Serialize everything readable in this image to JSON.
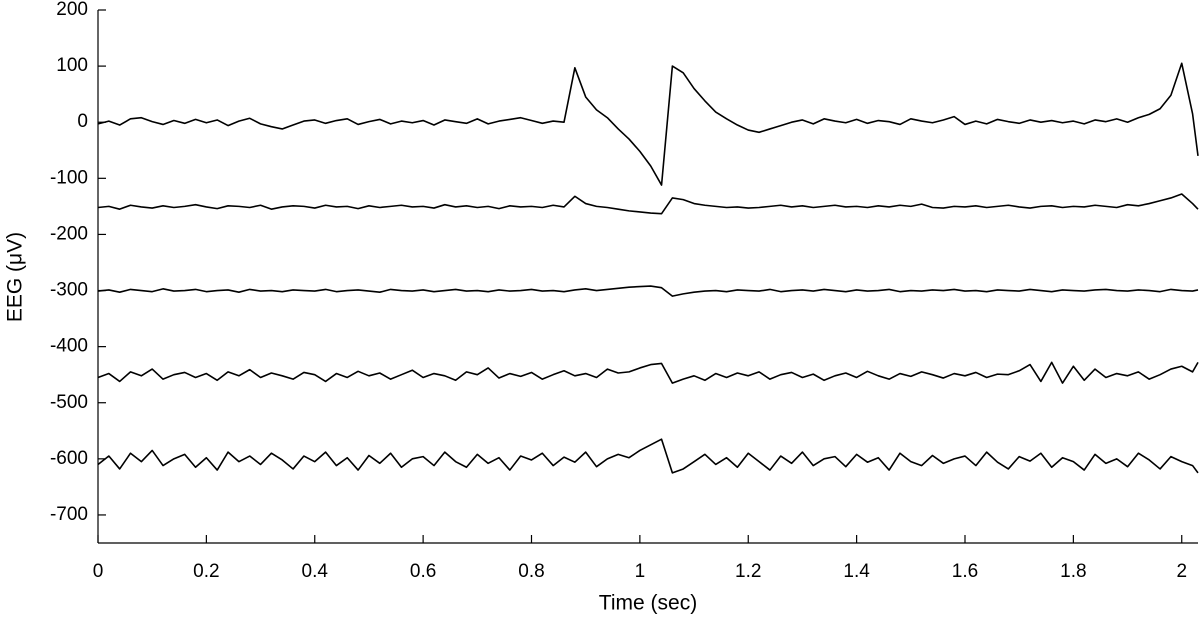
{
  "chart_data": {
    "type": "line",
    "xlabel": "Time (sec)",
    "ylabel": "EEG (μV)",
    "xlim": [
      0,
      2.03
    ],
    "ylim": [
      -750,
      200
    ],
    "xticks": [
      0,
      0.2,
      0.4,
      0.6,
      0.8,
      1,
      1.2,
      1.4,
      1.6,
      1.8,
      2
    ],
    "yticks": [
      200,
      100,
      0,
      -100,
      -200,
      -300,
      -400,
      -500,
      -600,
      -700
    ],
    "grid": false,
    "x": [
      0,
      0.02,
      0.04,
      0.06,
      0.08,
      0.1,
      0.12,
      0.14,
      0.16,
      0.18,
      0.2,
      0.22,
      0.24,
      0.26,
      0.28,
      0.3,
      0.32,
      0.34,
      0.36,
      0.38,
      0.4,
      0.42,
      0.44,
      0.46,
      0.48,
      0.5,
      0.52,
      0.54,
      0.56,
      0.58,
      0.6,
      0.62,
      0.64,
      0.66,
      0.68,
      0.7,
      0.72,
      0.74,
      0.76,
      0.78,
      0.8,
      0.82,
      0.84,
      0.86,
      0.88,
      0.9,
      0.92,
      0.94,
      0.96,
      0.98,
      1,
      1.02,
      1.04,
      1.06,
      1.08,
      1.1,
      1.12,
      1.14,
      1.16,
      1.18,
      1.2,
      1.22,
      1.24,
      1.26,
      1.28,
      1.3,
      1.32,
      1.34,
      1.36,
      1.38,
      1.4,
      1.42,
      1.44,
      1.46,
      1.48,
      1.5,
      1.52,
      1.54,
      1.56,
      1.58,
      1.6,
      1.62,
      1.64,
      1.66,
      1.68,
      1.7,
      1.72,
      1.74,
      1.76,
      1.78,
      1.8,
      1.82,
      1.84,
      1.86,
      1.88,
      1.9,
      1.92,
      1.94,
      1.96,
      1.98,
      2,
      2.02,
      2.03
    ],
    "series": [
      {
        "color": "#000000",
        "values": [
          -3,
          2,
          -5,
          6,
          8,
          1,
          -4,
          3,
          -2,
          5,
          -1,
          4,
          -6,
          2,
          7,
          -3,
          -8,
          -12,
          -5,
          2,
          4,
          -2,
          3,
          6,
          -4,
          1,
          5,
          -3,
          2,
          -1,
          3,
          -5,
          4,
          1,
          -2,
          6,
          -3,
          2,
          5,
          8,
          3,
          -2,
          2,
          0,
          97,
          45,
          22,
          8,
          -12,
          -30,
          -52,
          -78,
          -112,
          100,
          88,
          60,
          38,
          18,
          6,
          -5,
          -14,
          -18,
          -12,
          -6,
          0,
          4,
          -3,
          6,
          2,
          -1,
          5,
          -2,
          3,
          1,
          -4,
          6,
          2,
          -1,
          4,
          10,
          -4,
          2,
          -3,
          5,
          1,
          -2,
          4,
          0,
          3,
          -1,
          2,
          -3,
          4,
          1,
          6,
          0,
          8,
          14,
          24,
          48,
          105,
          15,
          -60
        ]
      },
      {
        "color": "#000000",
        "values": [
          -152,
          -150,
          -155,
          -148,
          -151,
          -153,
          -149,
          -152,
          -150,
          -147,
          -151,
          -154,
          -149,
          -150,
          -152,
          -148,
          -155,
          -151,
          -149,
          -150,
          -153,
          -148,
          -151,
          -150,
          -154,
          -149,
          -152,
          -150,
          -148,
          -151,
          -150,
          -153,
          -147,
          -151,
          -149,
          -152,
          -150,
          -154,
          -149,
          -151,
          -150,
          -152,
          -148,
          -151,
          -132,
          -145,
          -150,
          -152,
          -155,
          -158,
          -160,
          -162,
          -163,
          -135,
          -138,
          -145,
          -148,
          -150,
          -152,
          -151,
          -153,
          -152,
          -150,
          -148,
          -151,
          -149,
          -152,
          -150,
          -148,
          -151,
          -150,
          -152,
          -149,
          -151,
          -148,
          -150,
          -146,
          -152,
          -153,
          -150,
          -151,
          -149,
          -152,
          -150,
          -148,
          -151,
          -153,
          -150,
          -149,
          -152,
          -150,
          -151,
          -148,
          -150,
          -152,
          -147,
          -149,
          -145,
          -140,
          -135,
          -128,
          -145,
          -155
        ]
      },
      {
        "color": "#000000",
        "values": [
          -301,
          -299,
          -303,
          -298,
          -300,
          -302,
          -297,
          -301,
          -300,
          -298,
          -302,
          -300,
          -299,
          -303,
          -298,
          -301,
          -300,
          -302,
          -299,
          -300,
          -301,
          -298,
          -302,
          -300,
          -299,
          -301,
          -303,
          -298,
          -300,
          -301,
          -299,
          -302,
          -300,
          -298,
          -301,
          -300,
          -302,
          -299,
          -301,
          -300,
          -298,
          -301,
          -300,
          -302,
          -299,
          -297,
          -300,
          -298,
          -296,
          -294,
          -293,
          -292,
          -295,
          -310,
          -306,
          -303,
          -301,
          -300,
          -302,
          -299,
          -300,
          -301,
          -298,
          -302,
          -300,
          -299,
          -301,
          -298,
          -300,
          -302,
          -299,
          -301,
          -300,
          -298,
          -302,
          -300,
          -301,
          -299,
          -300,
          -298,
          -301,
          -300,
          -302,
          -299,
          -300,
          -301,
          -298,
          -300,
          -302,
          -299,
          -300,
          -301,
          -299,
          -298,
          -300,
          -301,
          -299,
          -300,
          -302,
          -298,
          -300,
          -301,
          -299
        ]
      },
      {
        "color": "#000000",
        "values": [
          -455,
          -448,
          -462,
          -445,
          -452,
          -440,
          -458,
          -450,
          -446,
          -455,
          -448,
          -460,
          -445,
          -452,
          -441,
          -455,
          -447,
          -452,
          -458,
          -446,
          -450,
          -462,
          -448,
          -455,
          -444,
          -452,
          -447,
          -458,
          -450,
          -442,
          -455,
          -448,
          -452,
          -460,
          -445,
          -450,
          -438,
          -456,
          -448,
          -453,
          -446,
          -458,
          -450,
          -443,
          -452,
          -448,
          -455,
          -440,
          -447,
          -445,
          -438,
          -432,
          -430,
          -465,
          -458,
          -452,
          -460,
          -448,
          -455,
          -447,
          -452,
          -445,
          -458,
          -450,
          -446,
          -455,
          -449,
          -460,
          -452,
          -447,
          -455,
          -444,
          -452,
          -458,
          -448,
          -453,
          -445,
          -450,
          -456,
          -448,
          -452,
          -446,
          -455,
          -449,
          -450,
          -443,
          -432,
          -462,
          -428,
          -465,
          -435,
          -460,
          -440,
          -455,
          -448,
          -452,
          -445,
          -458,
          -450,
          -440,
          -435,
          -445,
          -428
        ]
      },
      {
        "color": "#000000",
        "values": [
          -610,
          -595,
          -618,
          -590,
          -605,
          -585,
          -612,
          -600,
          -592,
          -615,
          -598,
          -620,
          -588,
          -605,
          -595,
          -610,
          -590,
          -602,
          -618,
          -595,
          -605,
          -588,
          -612,
          -598,
          -620,
          -594,
          -608,
          -590,
          -615,
          -600,
          -596,
          -612,
          -588,
          -605,
          -615,
          -592,
          -608,
          -598,
          -620,
          -595,
          -602,
          -590,
          -612,
          -597,
          -606,
          -588,
          -614,
          -600,
          -592,
          -598,
          -585,
          -575,
          -565,
          -625,
          -618,
          -605,
          -592,
          -610,
          -598,
          -615,
          -590,
          -605,
          -620,
          -595,
          -608,
          -588,
          -612,
          -600,
          -596,
          -614,
          -592,
          -606,
          -598,
          -620,
          -590,
          -605,
          -612,
          -594,
          -608,
          -600,
          -595,
          -612,
          -588,
          -606,
          -618,
          -596,
          -604,
          -590,
          -615,
          -598,
          -605,
          -620,
          -592,
          -608,
          -600,
          -614,
          -590,
          -602,
          -618,
          -596,
          -605,
          -612,
          -625
        ]
      }
    ]
  }
}
